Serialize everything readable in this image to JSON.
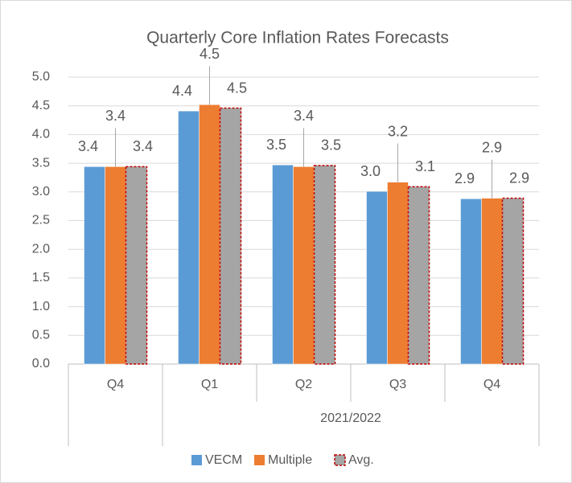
{
  "chart_data": {
    "type": "bar",
    "title": "Quarterly Core Inflation Rates Forecasts",
    "categories": [
      "Q4",
      "Q1",
      "Q2",
      "Q3",
      "Q4"
    ],
    "x_group_label": "2021/2022",
    "series": [
      {
        "name": "VECM",
        "color": "#5b9bd5",
        "values": [
          3.44,
          4.41,
          3.47,
          3.01,
          2.88
        ],
        "value_labels": [
          "3.4",
          "4.4",
          "3.5",
          "3.0",
          "2.9"
        ]
      },
      {
        "name": "Multiple",
        "color": "#ed7d31",
        "values": [
          3.44,
          4.52,
          3.44,
          3.17,
          2.89
        ],
        "value_labels": [
          "3.4",
          "4.5",
          "3.4",
          "3.2",
          "2.9"
        ]
      },
      {
        "name": "Avg.",
        "color": "#a5a5a5",
        "border": "#c00000",
        "values": [
          3.44,
          4.46,
          3.46,
          3.09,
          2.89
        ],
        "value_labels": [
          "3.4",
          "4.5",
          "3.5",
          "3.1",
          "2.9"
        ]
      }
    ],
    "ylim": [
      0,
      5
    ],
    "yticks": [
      {
        "value": 0,
        "label": "0.0"
      },
      0.5,
      {
        "value": 1,
        "label": "1.0"
      },
      1.5,
      {
        "value": 2,
        "label": "2.0"
      },
      2.5,
      {
        "value": 3,
        "label": "3.0"
      },
      3.5,
      {
        "value": 4,
        "label": "4.0"
      },
      4.5,
      {
        "value": 5,
        "label": "5.0"
      }
    ],
    "grid": true,
    "legend": "bottom"
  }
}
